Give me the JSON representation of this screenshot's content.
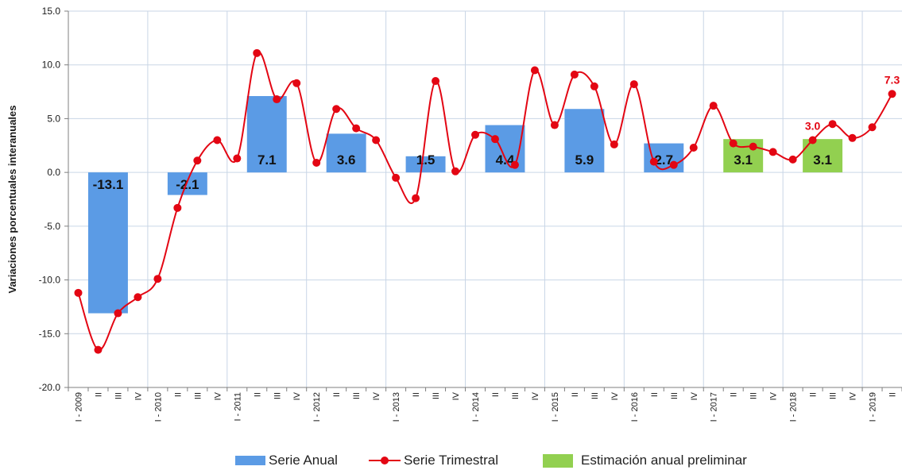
{
  "chart_data": {
    "type": "bar+line",
    "ylabel": "Variaciones porcentuales interanuales",
    "ylim": [
      -20,
      15
    ],
    "yticks": [
      "-20.0",
      "-15.0",
      "-10.0",
      "-5.0",
      "0.0",
      "5.0",
      "10.0",
      "15.0"
    ],
    "grid": true,
    "legend_position": "bottom",
    "categories": [
      "I - 2009",
      "II",
      "III",
      "IV",
      "I - 2010",
      "II",
      "III",
      "IV",
      "I - 2011",
      "II",
      "III",
      "IV",
      "I - 2012",
      "II",
      "III",
      "IV",
      "I - 2013",
      "II",
      "III",
      "IV",
      "I - 2014",
      "II",
      "III",
      "IV",
      "I - 2015",
      "II",
      "III",
      "IV",
      "I - 2016",
      "II",
      "III",
      "IV",
      "I - 2017",
      "II",
      "III",
      "IV",
      "I - 2018",
      "II",
      "III",
      "IV",
      "I - 2019",
      "II"
    ],
    "annual_bars": [
      {
        "year": "2009",
        "value": -13.1,
        "label": "-13.1",
        "kind": "anual"
      },
      {
        "year": "2010",
        "value": -2.1,
        "label": "-2.1",
        "kind": "anual"
      },
      {
        "year": "2011",
        "value": 7.1,
        "label": "7.1",
        "kind": "anual"
      },
      {
        "year": "2012",
        "value": 3.6,
        "label": "3.6",
        "kind": "anual"
      },
      {
        "year": "2013",
        "value": 1.5,
        "label": "1.5",
        "kind": "anual"
      },
      {
        "year": "2014",
        "value": 4.4,
        "label": "4.4",
        "kind": "anual"
      },
      {
        "year": "2015",
        "value": 5.9,
        "label": "5.9",
        "kind": "anual"
      },
      {
        "year": "2016",
        "value": 2.7,
        "label": "2.7",
        "kind": "anual"
      },
      {
        "year": "2017",
        "value": 3.1,
        "label": "3.1",
        "kind": "preliminar"
      },
      {
        "year": "2018",
        "value": 3.1,
        "label": "3.1",
        "kind": "preliminar"
      }
    ],
    "quarterly": [
      -11.2,
      -16.5,
      -13.1,
      -11.6,
      -9.9,
      -3.3,
      1.1,
      3.0,
      1.3,
      11.1,
      6.8,
      8.3,
      0.9,
      5.9,
      4.1,
      3.0,
      -0.5,
      -2.4,
      8.5,
      0.1,
      3.5,
      3.1,
      0.7,
      9.5,
      4.4,
      9.1,
      8.0,
      2.6,
      8.2,
      1.0,
      0.7,
      2.3,
      6.2,
      2.7,
      2.4,
      1.9,
      1.2,
      3.0,
      4.5,
      3.2,
      4.2,
      7.3
    ],
    "point_labels": [
      {
        "index": 37,
        "text": "3.0"
      },
      {
        "index": 41,
        "text": "7.3"
      }
    ],
    "legend": {
      "annual": "Serie Anual",
      "quarterly": "Serie Trimestral",
      "preliminary": "Estimación anual preliminar"
    },
    "colors": {
      "annual": "#5b9be5",
      "preliminary": "#92d050",
      "quarterly": "#e30613",
      "grid": "#c9d6e6",
      "axis": "#7f7f7f",
      "text": "#1a1a1a"
    }
  }
}
